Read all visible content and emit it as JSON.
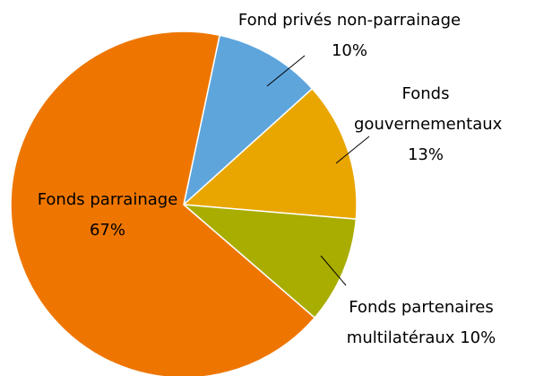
{
  "chart_data": {
    "type": "pie",
    "categories": [
      "Fond privés non-parrainage",
      "Fonds gouvernementaux",
      "Fonds partenaires multilatéraux",
      "Fonds parrainage"
    ],
    "values": [
      10,
      13,
      10,
      67
    ],
    "value_labels": [
      "10%",
      "13%",
      "10%",
      "67%"
    ],
    "colors": [
      "#5ea5dc",
      "#e9a600",
      "#a9ad00",
      "#ee7600"
    ]
  }
}
